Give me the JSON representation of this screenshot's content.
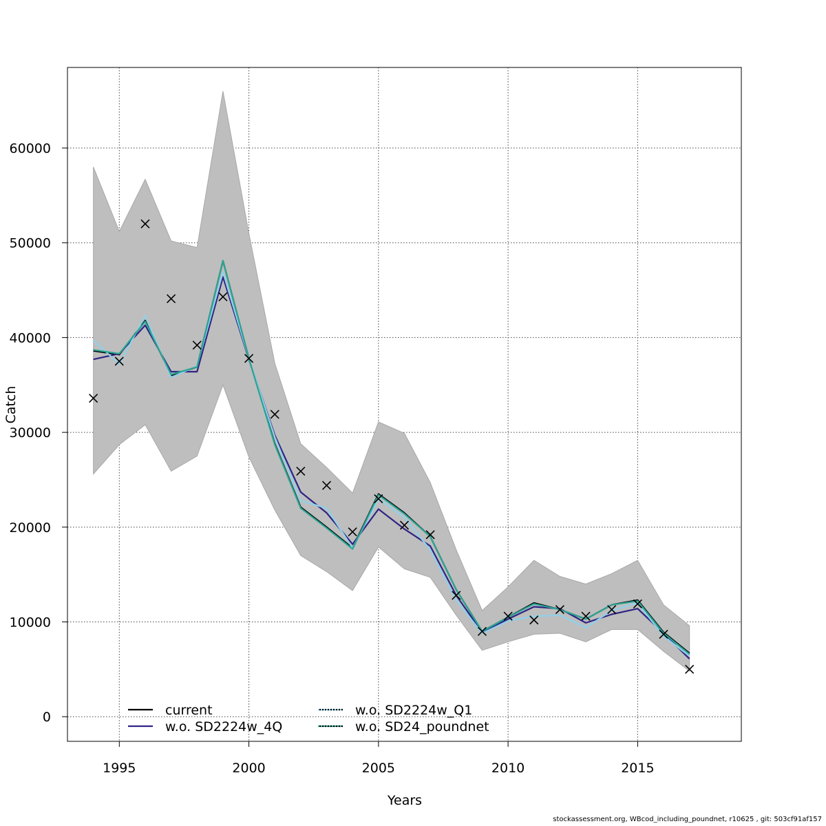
{
  "chart_data": {
    "type": "line",
    "xlabel": "Years",
    "ylabel": "Catch",
    "xlim": [
      1993,
      2019
    ],
    "ylim": [
      -2600,
      68500
    ],
    "x_ticks": [
      1995,
      2000,
      2005,
      2010,
      2015
    ],
    "y_ticks": [
      0,
      10000,
      20000,
      30000,
      40000,
      50000,
      60000
    ],
    "grid": true,
    "legend_position": "bottom-left",
    "years": [
      1994,
      1995,
      1996,
      1997,
      1998,
      1999,
      2000,
      2001,
      2002,
      2003,
      2004,
      2005,
      2006,
      2007,
      2008,
      2009,
      2010,
      2011,
      2012,
      2013,
      2014,
      2015,
      2016,
      2017
    ],
    "band": {
      "color": "#bebebe",
      "upper": [
        58000,
        51200,
        56700,
        50200,
        49500,
        66000,
        51000,
        37300,
        28800,
        26300,
        23600,
        31100,
        29900,
        24700,
        17600,
        11200,
        13700,
        16500,
        14800,
        14000,
        15100,
        16500,
        11800,
        9600
      ],
      "lower": [
        25600,
        28700,
        30800,
        25900,
        27500,
        35000,
        27400,
        21800,
        17000,
        15300,
        13300,
        17900,
        15600,
        14700,
        10700,
        7000,
        7900,
        8700,
        8800,
        7900,
        9200,
        9200,
        6900,
        4800
      ]
    },
    "observed": {
      "marker": "x",
      "values": [
        33600,
        37500,
        52000,
        44100,
        39200,
        44300,
        37800,
        31900,
        25900,
        24400,
        19500,
        23000,
        20200,
        19200,
        12800,
        9000,
        10600,
        10200,
        11300,
        10600,
        11300,
        11900,
        8700,
        5000
      ]
    },
    "series": [
      {
        "name": "current",
        "color": "#000000",
        "dashed": false,
        "values": [
          38600,
          38200,
          41800,
          36000,
          36900,
          48100,
          37800,
          28800,
          22100,
          20000,
          17800,
          23500,
          21500,
          19000,
          13400,
          9000,
          10500,
          12000,
          11300,
          10300,
          11800,
          12300,
          8900,
          6700
        ]
      },
      {
        "name": "w.o. SD2224w_4Q",
        "color": "#2f2384",
        "dashed": false,
        "values": [
          37700,
          38300,
          41300,
          36400,
          36400,
          46400,
          37700,
          29700,
          23700,
          21500,
          18200,
          21900,
          19800,
          18000,
          12800,
          8900,
          10300,
          11600,
          11400,
          9900,
          10800,
          11400,
          8800,
          6100
        ]
      },
      {
        "name": "w.o. SD2224w_Q1",
        "color": "#8fd1ea",
        "dashed": true,
        "values": [
          39700,
          37200,
          42300,
          35800,
          37000,
          46900,
          37800,
          29500,
          22800,
          22000,
          17800,
          23000,
          21000,
          17600,
          12300,
          8800,
          10100,
          10600,
          10700,
          9400,
          11200,
          12000,
          8500,
          6400
        ]
      },
      {
        "name": "w.o. SD24_poundnet",
        "color": "#2aa594",
        "dashed": true,
        "values": [
          38700,
          38300,
          41700,
          36100,
          36900,
          48100,
          37800,
          28700,
          22000,
          19900,
          17700,
          23400,
          21400,
          19000,
          13400,
          9000,
          10500,
          11900,
          11300,
          10300,
          11800,
          12200,
          8800,
          6600
        ]
      }
    ]
  },
  "footer_text": "stockassessment.org, WBcod_including_poundnet, r10625 , git: 503cf91af157"
}
